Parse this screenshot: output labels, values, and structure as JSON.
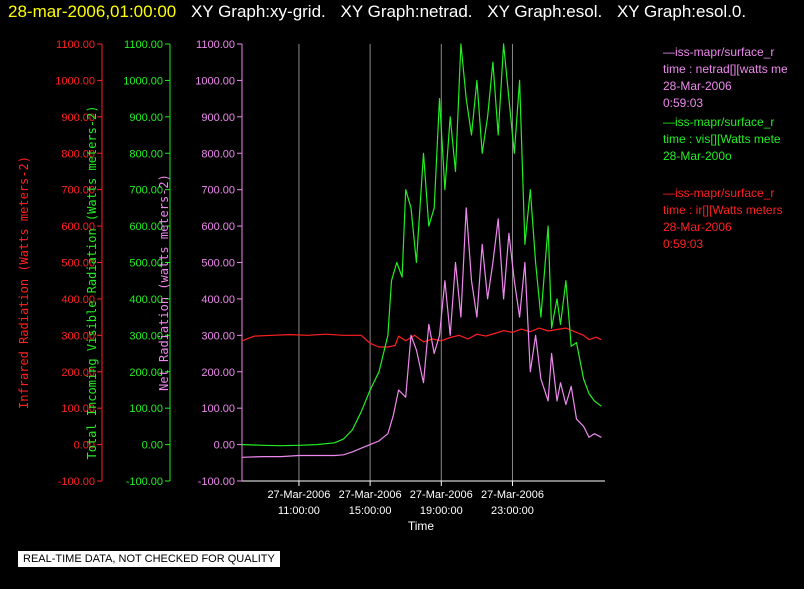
{
  "header": {
    "timestamp": "28-mar-2006,01:00:00",
    "titles": [
      "XY Graph:xy-grid.",
      "XY Graph:netrad.",
      "XY Graph:esol.",
      "XY Graph:esol.0."
    ]
  },
  "colors": {
    "background": "#000000",
    "ir": "#ff2020",
    "vis": "#22ee22",
    "net": "#ee88ee",
    "grid": "#8a8a8a",
    "header_ts": "#ffff00"
  },
  "legend": [
    {
      "color": "#ee88ee",
      "lines": [
        "—iss-mapr/surface_r",
        "time : netrad[][watts me",
        "28-Mar-2006",
        "0:59:03"
      ]
    },
    {
      "color": "#22ee22",
      "lines": [
        "—iss-mapr/surface_r",
        "time : vis[][Watts mete",
        "28-Mar-200o"
      ]
    },
    {
      "color": "#ff2020",
      "lines": [
        "—iss-mapr/surface_r",
        "time : ir[][Watts meters",
        "28-Mar-2006",
        "0:59:03"
      ]
    }
  ],
  "footer": {
    "qc_note": "REAL-TIME DATA, NOT CHECKED FOR QUALITY"
  },
  "chart_data": {
    "type": "line",
    "xlabel": "Time",
    "xlim_hours": [
      7.8,
      28.2
    ],
    "x_ticks": [
      {
        "hour": 11,
        "date": "27-Mar-2006",
        "time": "11:00:00"
      },
      {
        "hour": 15,
        "date": "27-Mar-2006",
        "time": "15:00:00"
      },
      {
        "hour": 19,
        "date": "27-Mar-2006",
        "time": "19:00:00"
      },
      {
        "hour": 23,
        "date": "27-Mar-2006",
        "time": "23:00:00"
      }
    ],
    "y_ticks": [
      "1100.00",
      "1000.00",
      "900.00",
      "800.00",
      "700.00",
      "600.00",
      "500.00",
      "400.00",
      "300.00",
      "200.00",
      "100.00",
      "0.00",
      "-100.00"
    ],
    "ylim": [
      -100,
      1100
    ],
    "axes": [
      {
        "label": "Infrared Radiation (Watts meters-2)",
        "color": "#ff2020"
      },
      {
        "label": "Total Incoming Visible Radiation (Watts meters-2)",
        "color": "#22ee22"
      },
      {
        "label": "Net Radiation (watts meters-2)",
        "color": "#ee88ee"
      }
    ],
    "grid": true,
    "series": [
      {
        "name": "ir",
        "color": "#ff2020",
        "x": [
          7.8,
          8.5,
          9.5,
          10.5,
          11.5,
          12.5,
          13.5,
          14.5,
          15,
          15.5,
          16,
          16.4,
          16.6,
          17,
          17.5,
          18,
          18.5,
          19,
          19.5,
          20,
          20.5,
          21,
          21.5,
          22,
          22.5,
          23,
          23.5,
          24,
          24.5,
          25,
          25.5,
          26,
          26.5,
          27,
          27.3,
          27.7,
          28
        ],
        "values": [
          285,
          298,
          300,
          302,
          300,
          303,
          300,
          300,
          278,
          268,
          268,
          272,
          298,
          285,
          300,
          282,
          290,
          285,
          294,
          300,
          290,
          303,
          298,
          305,
          313,
          308,
          317,
          310,
          320,
          312,
          316,
          320,
          310,
          300,
          288,
          295,
          288
        ]
      },
      {
        "name": "vis",
        "color": "#22ee22",
        "x": [
          7.8,
          9,
          10,
          11,
          12,
          13,
          13.5,
          14,
          14.5,
          15,
          15.5,
          16,
          16.2,
          16.5,
          16.8,
          17,
          17.3,
          17.6,
          18,
          18.3,
          18.6,
          18.9,
          19.2,
          19.5,
          19.8,
          20.1,
          20.4,
          20.7,
          21,
          21.3,
          21.6,
          21.9,
          22.2,
          22.5,
          22.8,
          23.1,
          23.4,
          23.7,
          24,
          24.3,
          24.6,
          25,
          25.2,
          25.5,
          25.7,
          26,
          26.3,
          26.6,
          27,
          27.3,
          27.6,
          28
        ],
        "values": [
          0,
          -2,
          -3,
          -2,
          0,
          5,
          15,
          40,
          90,
          150,
          200,
          300,
          450,
          500,
          460,
          700,
          650,
          500,
          800,
          600,
          650,
          950,
          700,
          900,
          750,
          1100,
          950,
          850,
          1000,
          800,
          900,
          1050,
          850,
          1100,
          950,
          800,
          1000,
          550,
          700,
          500,
          350,
          600,
          320,
          400,
          330,
          450,
          270,
          280,
          180,
          140,
          120,
          105
        ]
      },
      {
        "name": "netrad",
        "color": "#ee88ee",
        "x": [
          7.8,
          9,
          10,
          11,
          12,
          13,
          13.5,
          14,
          14.5,
          15,
          15.5,
          16,
          16.3,
          16.6,
          17,
          17.3,
          17.6,
          18,
          18.3,
          18.6,
          18.9,
          19.2,
          19.5,
          19.8,
          20.1,
          20.4,
          20.7,
          21,
          21.3,
          21.6,
          21.9,
          22.2,
          22.5,
          22.8,
          23.1,
          23.4,
          23.7,
          24,
          24.3,
          24.6,
          25,
          25.2,
          25.5,
          25.7,
          26,
          26.3,
          26.6,
          27,
          27.3,
          27.6,
          28
        ],
        "values": [
          -35,
          -33,
          -33,
          -30,
          -30,
          -30,
          -28,
          -20,
          -10,
          0,
          10,
          30,
          80,
          150,
          130,
          300,
          260,
          170,
          330,
          250,
          300,
          450,
          300,
          500,
          350,
          650,
          450,
          350,
          550,
          400,
          500,
          620,
          400,
          580,
          450,
          350,
          500,
          200,
          300,
          180,
          120,
          250,
          120,
          170,
          110,
          160,
          70,
          50,
          20,
          30,
          20
        ]
      }
    ]
  }
}
